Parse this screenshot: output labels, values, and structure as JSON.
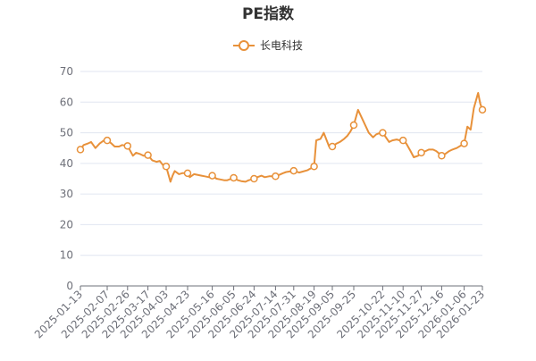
{
  "chart_data": {
    "type": "line",
    "title": "PE指数",
    "legend": "top-center",
    "grid": true,
    "ylim": [
      0,
      70
    ],
    "y_ticks": [
      0,
      10,
      20,
      30,
      40,
      50,
      60,
      70
    ],
    "x_tick_labels": [
      "2025-01-13",
      "2025-02-07",
      "2025-02-26",
      "2025-03-17",
      "2025-04-03",
      "2025-04-23",
      "2025-05-16",
      "2025-06-05",
      "2025-06-24",
      "2025-07-14",
      "2025-07-31",
      "2025-08-19",
      "2025-09-05",
      "2025-09-25",
      "2025-10-22",
      "2025-11-10",
      "2025-11-27",
      "2025-12-16",
      "2026-01-06",
      "2026-01-23"
    ],
    "series": [
      {
        "name": "长电科技",
        "color": "#e8913a",
        "x": [
          "2025-01-13",
          "2025-01-16",
          "2025-01-20",
          "2025-01-23",
          "2025-01-27",
          "2025-01-31",
          "2025-02-04",
          "2025-02-07",
          "2025-02-11",
          "2025-02-14",
          "2025-02-18",
          "2025-02-21",
          "2025-02-24",
          "2025-02-26",
          "2025-03-03",
          "2025-03-06",
          "2025-03-10",
          "2025-03-13",
          "2025-03-17",
          "2025-03-21",
          "2025-03-25",
          "2025-03-28",
          "2025-04-01",
          "2025-04-03",
          "2025-04-07",
          "2025-04-09",
          "2025-04-11",
          "2025-04-15",
          "2025-04-18",
          "2025-04-23",
          "2025-04-25",
          "2025-04-29",
          "2025-05-06",
          "2025-05-09",
          "2025-05-13",
          "2025-05-16",
          "2025-05-20",
          "2025-05-23",
          "2025-05-27",
          "2025-05-30",
          "2025-06-05",
          "2025-06-09",
          "2025-06-12",
          "2025-06-16",
          "2025-06-19",
          "2025-06-24",
          "2025-06-27",
          "2025-07-01",
          "2025-07-04",
          "2025-07-08",
          "2025-07-14",
          "2025-07-17",
          "2025-07-21",
          "2025-07-24",
          "2025-07-28",
          "2025-07-31",
          "2025-08-05",
          "2025-08-08",
          "2025-08-13",
          "2025-08-19",
          "2025-08-21",
          "2025-08-25",
          "2025-08-28",
          "2025-09-02",
          "2025-09-05",
          "2025-09-09",
          "2025-09-12",
          "2025-09-16",
          "2025-09-19",
          "2025-09-22",
          "2025-09-25",
          "2025-09-29",
          "2025-10-09",
          "2025-10-13",
          "2025-10-16",
          "2025-10-20",
          "2025-10-22",
          "2025-10-24",
          "2025-10-28",
          "2025-10-31",
          "2025-11-04",
          "2025-11-07",
          "2025-11-10",
          "2025-11-13",
          "2025-11-17",
          "2025-11-20",
          "2025-11-24",
          "2025-11-27",
          "2025-12-01",
          "2025-12-04",
          "2025-12-08",
          "2025-12-11",
          "2025-12-16",
          "2025-12-19",
          "2025-12-23",
          "2025-12-26",
          "2025-12-30",
          "2026-01-06",
          "2026-01-09",
          "2026-01-12",
          "2026-01-15",
          "2026-01-19",
          "2026-01-21",
          "2026-01-23"
        ],
        "values": [
          44.5,
          46.0,
          46.5,
          47.0,
          45.0,
          46.5,
          47.5,
          47.5,
          46.5,
          45.5,
          45.5,
          46.0,
          45.8,
          45.7,
          42.5,
          43.5,
          43.0,
          42.5,
          42.7,
          41.0,
          40.5,
          40.8,
          39.0,
          39.0,
          34.0,
          36.0,
          37.5,
          36.5,
          36.8,
          36.8,
          35.5,
          36.5,
          36.0,
          35.8,
          35.5,
          36.0,
          35.0,
          34.8,
          34.5,
          34.5,
          35.3,
          34.5,
          34.2,
          34.0,
          34.5,
          35.0,
          35.5,
          36.0,
          35.5,
          35.8,
          35.8,
          36.2,
          36.8,
          37.2,
          37.4,
          37.6,
          37.0,
          37.3,
          37.8,
          39.0,
          47.5,
          48.0,
          50.0,
          45.5,
          45.5,
          46.5,
          47.0,
          48.0,
          49.0,
          50.5,
          52.5,
          57.5,
          50.0,
          48.5,
          49.5,
          50.0,
          50.0,
          49.0,
          47.0,
          47.5,
          47.8,
          47.5,
          47.5,
          46.5,
          44.0,
          42.0,
          42.5,
          43.5,
          44.0,
          44.5,
          44.5,
          44.0,
          42.5,
          43.0,
          44.0,
          44.5,
          45.0,
          46.5,
          52.0,
          51.0,
          58.0,
          63.0,
          59.5,
          57.5
        ],
        "markers_at": [
          "2025-01-13",
          "2025-02-07",
          "2025-02-26",
          "2025-03-17",
          "2025-04-03",
          "2025-04-23",
          "2025-05-16",
          "2025-06-05",
          "2025-06-24",
          "2025-07-14",
          "2025-07-31",
          "2025-08-19",
          "2025-09-05",
          "2025-09-25",
          "2025-10-22",
          "2025-11-10",
          "2025-11-27",
          "2025-12-16",
          "2026-01-06",
          "2026-01-23"
        ]
      }
    ]
  }
}
